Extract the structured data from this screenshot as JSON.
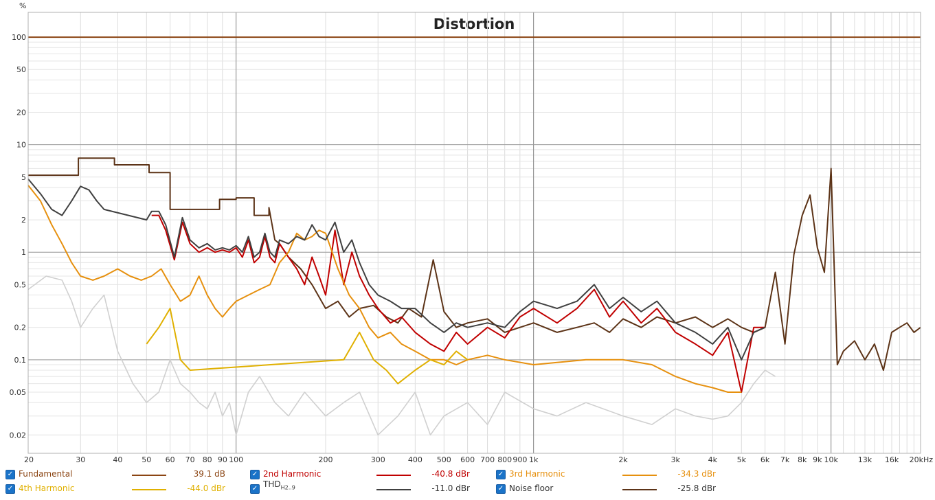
{
  "chart_data": {
    "type": "line",
    "title": "Distortion",
    "ylabel": "%",
    "xlabel": "",
    "x_unit_label": "Hz",
    "x_scale": "log",
    "y_scale": "log",
    "xlim": [
      20,
      20000
    ],
    "ylim": [
      0.0135,
      170
    ],
    "grid": true,
    "legend_placement": "bottom",
    "y_ticks": [
      {
        "v": 100,
        "label": "100"
      },
      {
        "v": 50,
        "label": "50"
      },
      {
        "v": 20,
        "label": "20"
      },
      {
        "v": 10,
        "label": "10"
      },
      {
        "v": 5,
        "label": "5"
      },
      {
        "v": 2,
        "label": "2"
      },
      {
        "v": 1,
        "label": "1"
      },
      {
        "v": 0.5,
        "label": "0.5"
      },
      {
        "v": 0.2,
        "label": "0.2"
      },
      {
        "v": 0.1,
        "label": "0.1"
      },
      {
        "v": 0.05,
        "label": "0.05"
      },
      {
        "v": 0.02,
        "label": "0.02"
      }
    ],
    "x_ticks": [
      {
        "v": 20,
        "label": "20"
      },
      {
        "v": 30,
        "label": "30"
      },
      {
        "v": 40,
        "label": "40"
      },
      {
        "v": 50,
        "label": "50"
      },
      {
        "v": 60,
        "label": "60"
      },
      {
        "v": 70,
        "label": "70"
      },
      {
        "v": 80,
        "label": "80"
      },
      {
        "v": 90,
        "label": "90"
      },
      {
        "v": 100,
        "label": "100"
      },
      {
        "v": 200,
        "label": "200"
      },
      {
        "v": 300,
        "label": "300"
      },
      {
        "v": 400,
        "label": "400"
      },
      {
        "v": 500,
        "label": "500"
      },
      {
        "v": 600,
        "label": "600"
      },
      {
        "v": 700,
        "label": "700"
      },
      {
        "v": 800,
        "label": "800"
      },
      {
        "v": 900,
        "label": "900"
      },
      {
        "v": 1000,
        "label": "1k"
      },
      {
        "v": 2000,
        "label": "2k"
      },
      {
        "v": 3000,
        "label": "3k"
      },
      {
        "v": 4000,
        "label": "4k"
      },
      {
        "v": 5000,
        "label": "5k"
      },
      {
        "v": 6000,
        "label": "6k"
      },
      {
        "v": 7000,
        "label": "7k"
      },
      {
        "v": 8000,
        "label": "8k"
      },
      {
        "v": 9000,
        "label": "9k"
      },
      {
        "v": 10000,
        "label": "10k"
      },
      {
        "v": 13000,
        "label": "13k"
      },
      {
        "v": 16000,
        "label": "16k"
      },
      {
        "v": 20000,
        "label": "20kHz"
      }
    ],
    "series": [
      {
        "name": "Fundamental",
        "value": "39.1 dB",
        "color": "#8b4513",
        "x": [
          20,
          20000
        ],
        "y": [
          100,
          100
        ]
      },
      {
        "name": "Noise floor",
        "value": "-25.8 dBr",
        "color": "#5c3317",
        "x": [
          20,
          29.5,
          29.5,
          39,
          39,
          51,
          51,
          60,
          60,
          64,
          64,
          88,
          88,
          100,
          100,
          115,
          115,
          129,
          129,
          135,
          140,
          150,
          165,
          180,
          200,
          220,
          240,
          260,
          290,
          320,
          350,
          380,
          420,
          460,
          500,
          550,
          600,
          700,
          800,
          900,
          1000,
          1200,
          1400,
          1600,
          1800,
          2000,
          2300,
          2600,
          3000,
          3500,
          4000,
          4500,
          5000,
          5500,
          6000,
          6500,
          7000,
          7500,
          8000,
          8500,
          9000,
          9500,
          10000,
          10500,
          11000,
          12000,
          13000,
          14000,
          15000,
          16000,
          17000,
          18000,
          19000,
          20000
        ],
        "y": [
          5.2,
          5.2,
          7.5,
          7.5,
          6.5,
          6.5,
          5.5,
          5.5,
          2.5,
          2.5,
          2.5,
          2.5,
          3.1,
          3.1,
          3.2,
          3.2,
          2.2,
          2.2,
          2.6,
          1.3,
          1.2,
          0.9,
          0.7,
          0.5,
          0.3,
          0.35,
          0.25,
          0.3,
          0.32,
          0.25,
          0.22,
          0.3,
          0.25,
          0.85,
          0.28,
          0.2,
          0.22,
          0.24,
          0.18,
          0.2,
          0.22,
          0.18,
          0.2,
          0.22,
          0.18,
          0.24,
          0.2,
          0.25,
          0.22,
          0.25,
          0.2,
          0.24,
          0.2,
          0.18,
          0.2,
          0.65,
          0.14,
          0.95,
          2.2,
          3.4,
          1.1,
          0.65,
          6.0,
          0.09,
          0.12,
          0.15,
          0.1,
          0.14,
          0.08,
          0.18,
          0.2,
          0.22,
          0.18,
          0.2
        ]
      },
      {
        "name": "2nd Harmonic",
        "value": "-40.8 dBr",
        "color": "#c00000",
        "x": [
          52,
          55,
          58,
          62,
          66,
          70,
          75,
          80,
          85,
          90,
          95,
          100,
          105,
          110,
          115,
          120,
          125,
          130,
          135,
          140,
          150,
          160,
          170,
          180,
          190,
          200,
          215,
          230,
          245,
          260,
          280,
          300,
          330,
          360,
          400,
          450,
          500,
          550,
          600,
          700,
          800,
          900,
          1000,
          1200,
          1400,
          1600,
          1800,
          2000,
          2300,
          2600,
          3000,
          3500,
          4000,
          4500,
          5000,
          5500,
          6000
        ],
        "y": [
          2.2,
          2.2,
          1.6,
          0.85,
          1.9,
          1.2,
          1.0,
          1.1,
          1.0,
          1.05,
          1.0,
          1.1,
          0.9,
          1.3,
          0.8,
          0.9,
          1.4,
          0.9,
          0.8,
          1.2,
          0.9,
          0.7,
          0.5,
          0.9,
          0.6,
          0.4,
          1.6,
          0.5,
          1.0,
          0.6,
          0.4,
          0.3,
          0.22,
          0.25,
          0.18,
          0.14,
          0.12,
          0.18,
          0.14,
          0.2,
          0.16,
          0.25,
          0.3,
          0.22,
          0.3,
          0.45,
          0.25,
          0.35,
          0.22,
          0.3,
          0.18,
          0.14,
          0.11,
          0.18,
          0.05,
          0.2,
          0.2
        ]
      },
      {
        "name": "3rd Harmonic",
        "value": "-34.3 dBr",
        "color": "#e6900e",
        "x": [
          20,
          22,
          24,
          26,
          28,
          30,
          33,
          36,
          40,
          44,
          48,
          52,
          56,
          60,
          65,
          70,
          75,
          80,
          85,
          90,
          95,
          100,
          110,
          120,
          130,
          140,
          150,
          160,
          170,
          180,
          190,
          200,
          220,
          240,
          260,
          280,
          300,
          330,
          360,
          400,
          450,
          500,
          550,
          600,
          700,
          800,
          1000,
          1500,
          2000,
          2500,
          3000,
          3500,
          4000,
          4500,
          5000
        ],
        "y": [
          4.2,
          3.0,
          1.8,
          1.2,
          0.8,
          0.6,
          0.55,
          0.6,
          0.7,
          0.6,
          0.55,
          0.6,
          0.7,
          0.5,
          0.35,
          0.4,
          0.6,
          0.4,
          0.3,
          0.25,
          0.3,
          0.35,
          0.4,
          0.45,
          0.5,
          0.8,
          1.0,
          1.5,
          1.3,
          1.4,
          1.6,
          1.5,
          0.7,
          0.4,
          0.3,
          0.2,
          0.16,
          0.18,
          0.14,
          0.12,
          0.1,
          0.1,
          0.09,
          0.1,
          0.11,
          0.1,
          0.09,
          0.1,
          0.1,
          0.09,
          0.07,
          0.06,
          0.055,
          0.05,
          0.05
        ]
      },
      {
        "name": "4th Harmonic",
        "value": "-44.0 dBr",
        "color": "#e0b000",
        "x": [
          50,
          55,
          60,
          65,
          70,
          230,
          260,
          290,
          320,
          350,
          400,
          450,
          500,
          550,
          600
        ],
        "y": [
          0.14,
          0.2,
          0.3,
          0.1,
          0.08,
          0.1,
          0.18,
          0.1,
          0.08,
          0.06,
          0.08,
          0.1,
          0.09,
          0.12,
          0.1
        ]
      },
      {
        "name": "THDH2..9",
        "name_main": "THD",
        "name_sub": "H2..9",
        "value": "-11.0 dBr",
        "color": "#404040",
        "x": [
          20,
          22,
          24,
          26,
          28,
          30,
          32,
          34,
          36,
          50,
          52,
          55,
          58,
          62,
          66,
          70,
          75,
          80,
          85,
          90,
          95,
          100,
          105,
          110,
          115,
          120,
          125,
          130,
          135,
          140,
          150,
          160,
          170,
          180,
          190,
          200,
          215,
          230,
          245,
          260,
          280,
          300,
          330,
          360,
          400,
          450,
          500,
          550,
          600,
          700,
          800,
          900,
          1000,
          1200,
          1400,
          1600,
          1800,
          2000,
          2300,
          2600,
          3000,
          3500,
          4000,
          4500,
          5000,
          5500,
          6000
        ],
        "y": [
          4.8,
          3.5,
          2.5,
          2.2,
          3.0,
          4.1,
          3.8,
          3.0,
          2.5,
          2.0,
          2.4,
          2.4,
          1.8,
          0.9,
          2.1,
          1.3,
          1.1,
          1.2,
          1.05,
          1.1,
          1.05,
          1.15,
          1.0,
          1.4,
          0.9,
          1.0,
          1.5,
          1.0,
          0.9,
          1.3,
          1.2,
          1.4,
          1.3,
          1.8,
          1.4,
          1.3,
          1.9,
          1.0,
          1.3,
          0.8,
          0.5,
          0.4,
          0.35,
          0.3,
          0.3,
          0.22,
          0.18,
          0.22,
          0.2,
          0.22,
          0.2,
          0.28,
          0.35,
          0.3,
          0.35,
          0.5,
          0.3,
          0.38,
          0.28,
          0.35,
          0.22,
          0.18,
          0.14,
          0.2,
          0.1,
          0.18,
          0.2
        ]
      },
      {
        "name": "Noise floor (unchecked)",
        "value": "",
        "color": "#d0d0d0",
        "hidden_legend": true,
        "x": [
          20,
          23,
          26,
          28,
          30,
          33,
          36,
          40,
          45,
          50,
          55,
          60,
          65,
          70,
          75,
          80,
          85,
          90,
          95,
          100,
          110,
          120,
          135,
          150,
          170,
          200,
          230,
          260,
          300,
          350,
          400,
          450,
          500,
          600,
          700,
          800,
          1000,
          1200,
          1500,
          2000,
          2500,
          3000,
          3500,
          4000,
          4500,
          5000,
          5500,
          6000,
          6500
        ],
        "y": [
          0.45,
          0.6,
          0.55,
          0.35,
          0.2,
          0.3,
          0.4,
          0.12,
          0.06,
          0.04,
          0.05,
          0.1,
          0.06,
          0.05,
          0.04,
          0.035,
          0.05,
          0.03,
          0.04,
          0.02,
          0.05,
          0.07,
          0.04,
          0.03,
          0.05,
          0.03,
          0.04,
          0.05,
          0.02,
          0.03,
          0.05,
          0.02,
          0.03,
          0.04,
          0.025,
          0.05,
          0.035,
          0.03,
          0.04,
          0.03,
          0.025,
          0.035,
          0.03,
          0.028,
          0.03,
          0.04,
          0.06,
          0.08,
          0.07
        ]
      }
    ]
  },
  "legend": {
    "rows": [
      [
        {
          "name": "Fundamental",
          "value": "39.1 dB",
          "color": "#8b4513",
          "text_color": "#8b4513"
        },
        {
          "name": "2nd Harmonic",
          "value": "-40.8 dBr",
          "color": "#c00000",
          "text_color": "#c00000"
        },
        {
          "name": "3rd Harmonic",
          "value": "-34.3 dBr",
          "color": "#e6900e",
          "text_color": "#e6900e"
        }
      ],
      [
        {
          "name": "4th Harmonic",
          "value": "-44.0 dBr",
          "color": "#e0b000",
          "text_color": "#e0b000"
        },
        {
          "name_main": "THD",
          "name_sub": "H2..9",
          "value": "-11.0 dBr",
          "color": "#404040",
          "text_color": "#333333"
        },
        {
          "name": "Noise floor",
          "value": "-25.8 dBr",
          "color": "#5c3317",
          "text_color": "#333333"
        }
      ]
    ]
  }
}
